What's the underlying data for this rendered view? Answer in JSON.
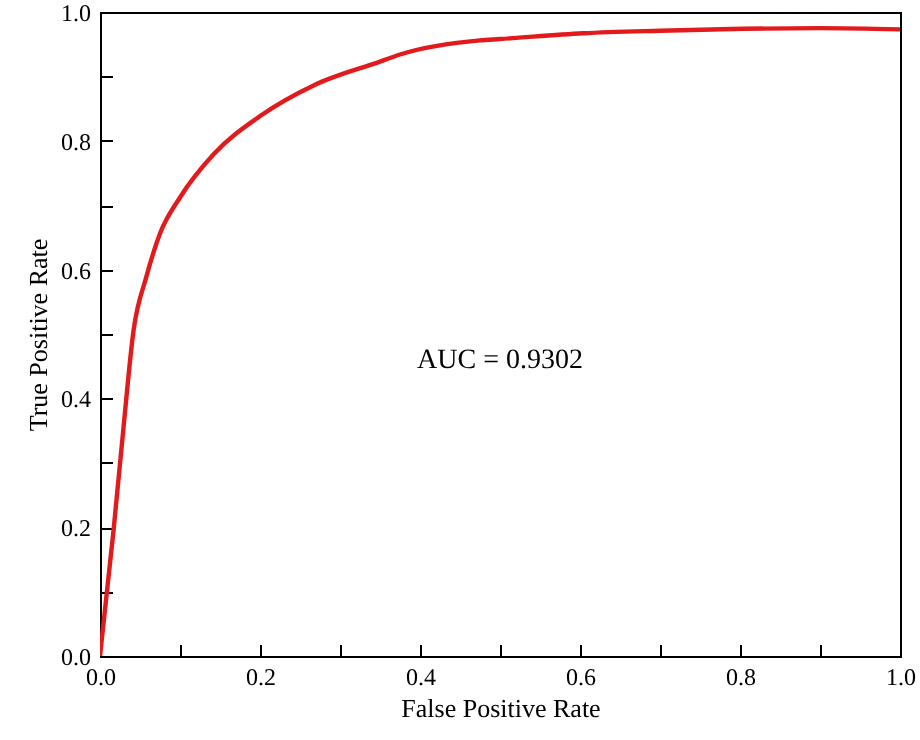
{
  "chart_data": {
    "type": "line",
    "xlabel": "False Positive Rate",
    "ylabel": "True Positive Rate",
    "annotations": [
      "AUC = 0.9302"
    ],
    "x": [
      0,
      0.017,
      0.029,
      0.042,
      0.058,
      0.075,
      0.1,
      0.142,
      0.202,
      0.267,
      0.35,
      0.375,
      0.475,
      0.5,
      0.604,
      0.7,
      0.804,
      0.9,
      1.0
    ],
    "series": [
      {
        "color": "#e31a1c",
        "values": [
          0,
          0.196,
          0.35,
          0.506,
          0.589,
          0.656,
          0.712,
          0.779,
          0.84,
          0.886,
          0.923,
          0.934,
          0.956,
          0.958,
          0.967,
          0.971,
          0.974,
          0.975,
          0.973
        ]
      }
    ],
    "xlim": [
      0,
      1
    ],
    "ylim": [
      0,
      1
    ],
    "xticks": [
      {
        "value": 0,
        "label": "0.0"
      },
      {
        "value": 0.1,
        "label": null
      },
      0.2,
      {
        "value": 0.3,
        "label": null
      },
      0.4,
      {
        "value": 0.5,
        "label": null
      },
      0.6,
      {
        "value": 0.7,
        "label": null
      },
      0.8,
      {
        "value": 0.9,
        "label": null
      },
      {
        "value": 1,
        "label": "1.0"
      }
    ],
    "yticks": [
      {
        "value": 0,
        "label": "0.0"
      },
      {
        "value": 0.1,
        "label": null
      },
      0.2,
      {
        "value": 0.3,
        "label": null
      },
      0.4,
      {
        "value": 0.5,
        "label": null
      },
      0.6,
      {
        "value": 0.7,
        "label": null
      },
      0.8,
      {
        "value": 0.9,
        "label": null
      },
      {
        "value": 1,
        "label": "1.0"
      }
    ],
    "grid": false,
    "marker": "none",
    "line_style": "solid"
  }
}
